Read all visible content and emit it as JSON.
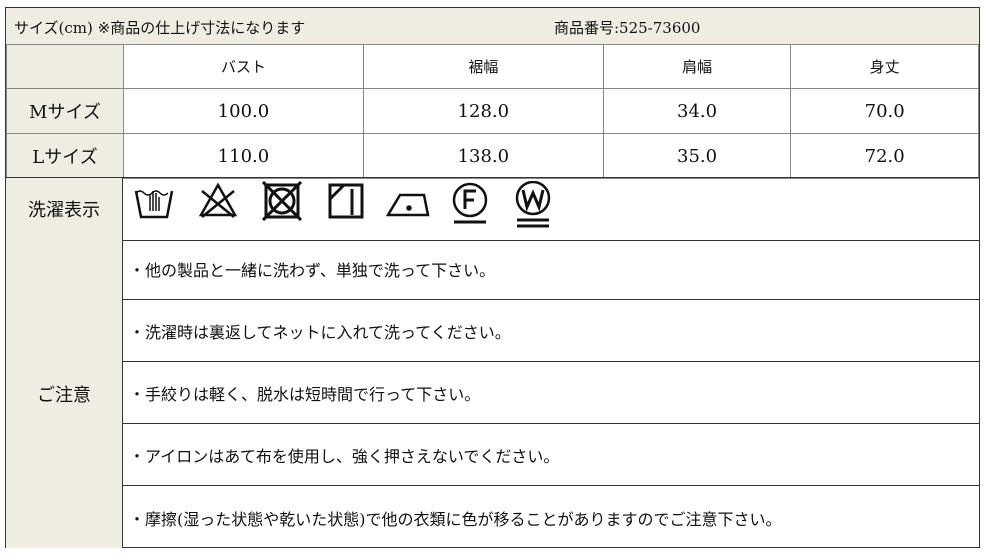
{
  "title": {
    "left": "サイズ(cm) ※商品の仕上げ寸法になります",
    "product_no": "商品番号:525-73600"
  },
  "columns": [
    "バスト",
    "裾幅",
    "肩幅",
    "身丈"
  ],
  "rows": [
    {
      "label": "Mサイズ",
      "values": [
        "100.0",
        "128.0",
        "34.0",
        "70.0"
      ]
    },
    {
      "label": "Lサイズ",
      "values": [
        "110.0",
        "138.0",
        "35.0",
        "72.0"
      ]
    }
  ],
  "care": {
    "label": "洗濯表示",
    "icons": [
      "hand-wash-icon",
      "no-bleach-icon",
      "no-tumble-dry-icon",
      "drip-dry-shade-icon",
      "iron-low-icon",
      "dry-clean-f-icon",
      "wet-clean-w-icon"
    ]
  },
  "notes": {
    "label": "ご注意",
    "items": [
      "・他の製品と一緒に洗わず、単独で洗って下さい。",
      "・洗濯時は裏返してネットに入れて洗ってください。",
      "・手絞りは軽く、脱水は短時間で行って下さい。",
      "・アイロンはあて布を使用し、強く押さえないでください。",
      "・摩擦(湿った状態や乾いた状態)で他の衣類に色が移ることがありますのでご注意下さい。"
    ]
  }
}
